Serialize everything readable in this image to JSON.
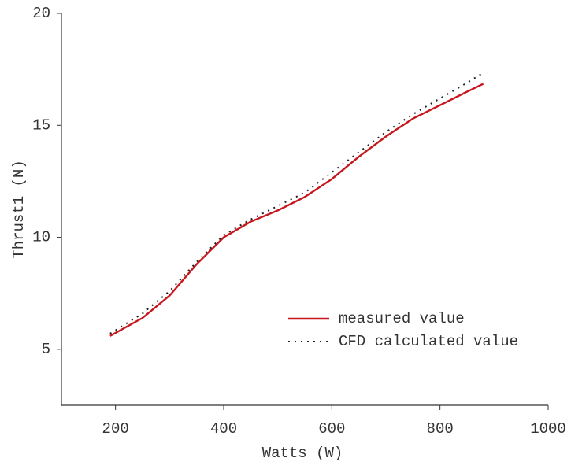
{
  "chart_data": {
    "type": "line",
    "xlabel": "Watts (W)",
    "ylabel": "Thrust1 (N)",
    "xlim": [
      100,
      1000
    ],
    "xticks": [
      200,
      400,
      600,
      800,
      1000
    ],
    "ylim": [
      2.5,
      20
    ],
    "yticks": [
      5,
      10,
      15,
      20
    ],
    "legend": "lower right",
    "series": [
      {
        "name": "measured value",
        "color": "#c8161d",
        "style": "solid",
        "x": [
          190,
          250,
          300,
          350,
          400,
          450,
          500,
          550,
          600,
          650,
          700,
          750,
          800,
          850,
          880
        ],
        "values": [
          5.6,
          6.4,
          7.4,
          8.8,
          10.0,
          10.7,
          11.2,
          11.8,
          12.6,
          13.6,
          14.5,
          15.3,
          15.9,
          16.5,
          16.85
        ]
      },
      {
        "name": "CFD calculated value",
        "color": "#222222",
        "style": "dotted",
        "x": [
          190,
          250,
          300,
          350,
          400,
          450,
          500,
          550,
          600,
          650,
          700,
          750,
          800,
          850,
          880
        ],
        "values": [
          5.7,
          6.6,
          7.6,
          8.9,
          10.1,
          10.8,
          11.4,
          12.0,
          12.9,
          13.8,
          14.7,
          15.5,
          16.2,
          16.9,
          17.35
        ]
      }
    ]
  }
}
